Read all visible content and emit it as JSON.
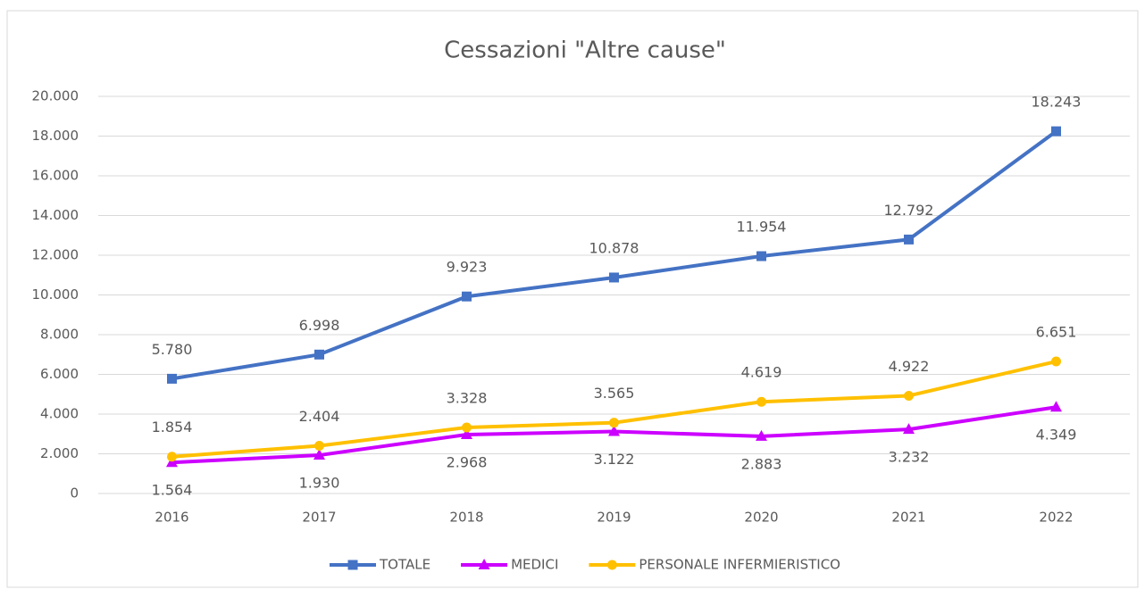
{
  "chart_data": {
    "type": "line",
    "title": "Cessazioni \"Altre cause\"",
    "categories": [
      "2016",
      "2017",
      "2018",
      "2019",
      "2020",
      "2021",
      "2022"
    ],
    "series": [
      {
        "name": "TOTALE",
        "color": "#4472c4",
        "marker": "square",
        "values": [
          5780,
          6998,
          9923,
          10878,
          11954,
          12792,
          18243
        ],
        "value_labels": [
          "5.780",
          "6.998",
          "9.923",
          "10.878",
          "11.954",
          "12.792",
          "18.243"
        ]
      },
      {
        "name": "MEDICI",
        "color": "#cc00ff",
        "marker": "triangle",
        "values": [
          1564,
          1930,
          2968,
          3122,
          2883,
          3232,
          4349
        ],
        "value_labels": [
          "1.564",
          "1.930",
          "2.968",
          "3.122",
          "2.883",
          "3.232",
          "4.349"
        ]
      },
      {
        "name": "PERSONALE INFERMIERISTICO",
        "color": "#ffc000",
        "marker": "circle",
        "values": [
          1854,
          2404,
          3328,
          3565,
          4619,
          4922,
          6651
        ],
        "value_labels": [
          "1.854",
          "2.404",
          "3.328",
          "3.565",
          "4.619",
          "4.922",
          "6.651"
        ]
      }
    ],
    "ylim": [
      0,
      20000
    ],
    "yticks": [
      0,
      {
        "value": 2000,
        "label": "2.000"
      },
      {
        "value": 4000,
        "label": "4.000"
      },
      {
        "value": 6000,
        "label": "6.000"
      },
      {
        "value": 8000,
        "label": "8.000"
      },
      {
        "value": 10000,
        "label": "10.000"
      },
      {
        "value": 12000,
        "label": "12.000"
      },
      {
        "value": 14000,
        "label": "14.000"
      },
      {
        "value": 16000,
        "label": "16.000"
      },
      {
        "value": 18000,
        "label": "18.000"
      },
      {
        "value": 20000,
        "label": "20.000"
      }
    ],
    "grid": true,
    "legend": "bottom"
  }
}
